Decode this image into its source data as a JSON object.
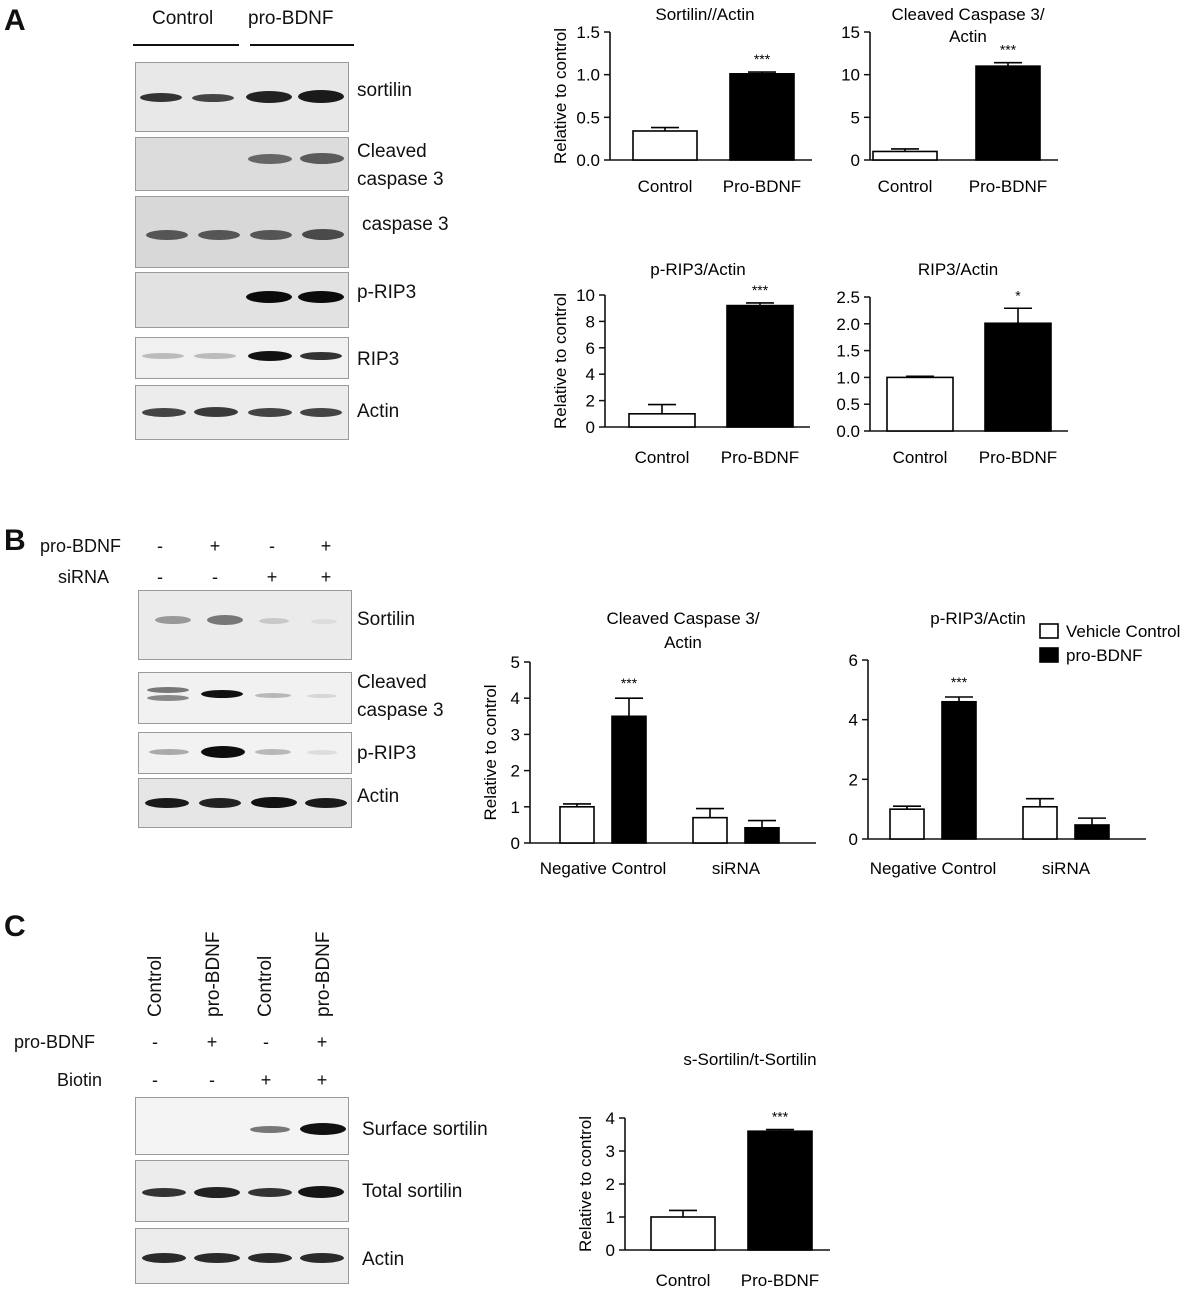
{
  "panels": {
    "a": "A",
    "b": "B",
    "c": "C"
  },
  "panel_a": {
    "header": {
      "control": "Control",
      "probdnf": "pro-BDNF"
    },
    "blot_labels": {
      "sortilin": "sortilin",
      "cleaved": "Cleaved\ncaspase 3",
      "caspase3": "caspase 3",
      "prip3": "p-RIP3",
      "rip3": "RIP3",
      "actin": "Actin"
    }
  },
  "panel_b": {
    "rows": [
      {
        "label": "pro-BDNF",
        "marks": [
          "-",
          "+",
          "-",
          "+"
        ]
      },
      {
        "label": "siRNA",
        "marks": [
          "-",
          "-",
          "+",
          "+"
        ]
      }
    ],
    "blot_labels": {
      "sortilin": "Sortilin",
      "cleaved": "Cleaved\ncaspase 3",
      "prip3": "p-RIP3",
      "actin": "Actin"
    }
  },
  "panel_c": {
    "lane_labels": [
      "Control",
      "pro-BDNF",
      "Control",
      "pro-BDNF"
    ],
    "rows": [
      {
        "label": "pro-BDNF",
        "marks": [
          "-",
          "+",
          "-",
          "+"
        ]
      },
      {
        "label": "Biotin",
        "marks": [
          "-",
          "-",
          "+",
          "+"
        ]
      }
    ],
    "blot_labels": {
      "surface": "Surface sortilin",
      "total": "Total sortilin",
      "actin": "Actin"
    }
  },
  "chart_data": [
    {
      "id": "a1",
      "type": "bar",
      "title": "Sortilin//Actin",
      "ylabel": "Relative to control",
      "ylim": [
        0,
        1.5
      ],
      "yticks": [
        "0.0",
        "0.5",
        "1.0",
        "1.5"
      ],
      "categories": [
        "Control",
        "Pro-BDNF"
      ],
      "values": [
        0.34,
        1.01
      ],
      "errors": [
        0.04,
        0.02
      ],
      "annotations": [
        "",
        "***"
      ]
    },
    {
      "id": "a2",
      "type": "bar",
      "title": "Cleaved Caspase 3/\nActin",
      "ylabel": "",
      "ylim": [
        0,
        15
      ],
      "yticks": [
        "0",
        "5",
        "10",
        "15"
      ],
      "categories": [
        "Control",
        "Pro-BDNF"
      ],
      "values": [
        1.0,
        11.0
      ],
      "errors": [
        0.3,
        0.4
      ],
      "annotations": [
        "",
        "***"
      ]
    },
    {
      "id": "a3",
      "type": "bar",
      "title": "p-RIP3/Actin",
      "ylabel": "Relative to control",
      "ylim": [
        0,
        10
      ],
      "yticks": [
        "0",
        "2",
        "4",
        "6",
        "8",
        "10"
      ],
      "categories": [
        "Control",
        "Pro-BDNF"
      ],
      "values": [
        1.0,
        9.2
      ],
      "errors": [
        0.7,
        0.2
      ],
      "annotations": [
        "",
        "***"
      ]
    },
    {
      "id": "a4",
      "type": "bar",
      "title": "RIP3/Actin",
      "ylabel": "",
      "ylim": [
        0,
        2.5
      ],
      "yticks": [
        "0.0",
        "0.5",
        "1.0",
        "1.5",
        "2.0",
        "2.5"
      ],
      "categories": [
        "Control",
        "Pro-BDNF"
      ],
      "values": [
        1.0,
        2.01
      ],
      "errors": [
        0.02,
        0.28
      ],
      "annotations": [
        "",
        "*"
      ]
    },
    {
      "id": "b1",
      "type": "bar",
      "title": "Cleaved Caspase 3/\nActin",
      "ylabel": "Relative to control",
      "ylim": [
        0,
        5
      ],
      "yticks": [
        "0",
        "1",
        "2",
        "3",
        "4",
        "5"
      ],
      "categories": [
        "Negative Control",
        "siRNA"
      ],
      "series": [
        {
          "name": "Vehicle Control",
          "values": [
            1.0,
            0.7
          ],
          "errors": [
            0.08,
            0.25
          ]
        },
        {
          "name": "pro-BDNF",
          "values": [
            3.5,
            0.42
          ],
          "errors": [
            0.5,
            0.2
          ]
        }
      ],
      "annotations": [
        "***",
        ""
      ]
    },
    {
      "id": "b2",
      "type": "bar",
      "title": "p-RIP3/Actin",
      "ylabel": "",
      "ylim": [
        0,
        6
      ],
      "yticks": [
        "0",
        "2",
        "4",
        "6"
      ],
      "categories": [
        "Negative Control",
        "siRNA"
      ],
      "series": [
        {
          "name": "Vehicle Control",
          "values": [
            1.0,
            1.08
          ],
          "errors": [
            0.1,
            0.27
          ]
        },
        {
          "name": "pro-BDNF",
          "values": [
            4.6,
            0.47
          ],
          "errors": [
            0.16,
            0.23
          ]
        }
      ],
      "annotations": [
        "***",
        ""
      ],
      "legend": "top-right"
    },
    {
      "id": "c1",
      "type": "bar",
      "title": "s-Sortilin/t-Sortilin",
      "ylabel": "Relative to control",
      "ylim": [
        0,
        4
      ],
      "yticks": [
        "0",
        "1",
        "2",
        "3",
        "4"
      ],
      "categories": [
        "Control",
        "Pro-BDNF"
      ],
      "values": [
        1.0,
        3.6
      ],
      "errors": [
        0.2,
        0.05
      ],
      "annotations": [
        "",
        "***"
      ]
    }
  ]
}
